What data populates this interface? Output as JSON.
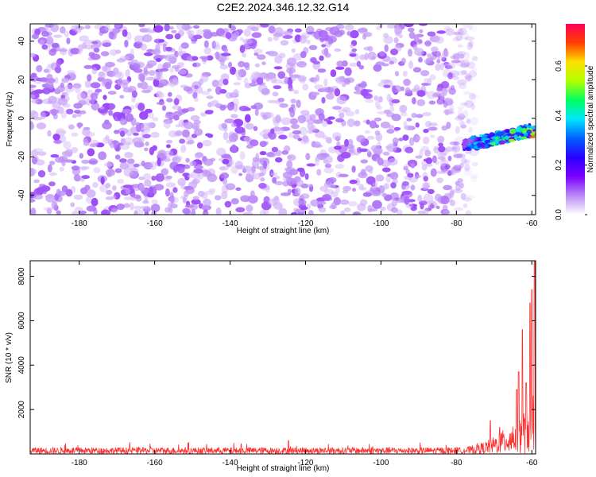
{
  "title": "C2E2.2024.346.12.32.G14",
  "chart_data": [
    {
      "type": "heatmap",
      "xlabel": "Height of straight line (km)",
      "ylabel": "Frequency (Hz)",
      "xlim": [
        -193,
        -59
      ],
      "ylim": [
        -50,
        49
      ],
      "x_ticks": [
        -180,
        -160,
        -140,
        -120,
        -100,
        -80,
        -60
      ],
      "y_ticks": [
        -40,
        -20,
        0,
        20,
        40
      ],
      "colorbar": {
        "label": "Normalized spectral amplitude",
        "range": [
          0,
          0.77
        ],
        "ticks": [
          0,
          0.2,
          0.4,
          0.6
        ],
        "tick_labels": [
          "0.0",
          "0.2",
          "0.4",
          "0.6"
        ],
        "colors": [
          "#ffffff",
          "#b98af5",
          "#7a00ff",
          "#2a00ff",
          "#0060ff",
          "#00e6ff",
          "#00ff60",
          "#b0ff00",
          "#ffe000",
          "#ff4000",
          "#ff005a"
        ]
      },
      "noise_region": {
        "x": [
          -193,
          -78
        ],
        "amplitude": [
          0.0,
          0.25
        ]
      },
      "signal_region": {
        "x": [
          -78,
          -59
        ],
        "frequency_center_at_start": -14,
        "frequency_center_at_end": -6,
        "frequency_width": 6,
        "peak_amplitude": 0.7
      }
    },
    {
      "type": "line",
      "xlabel": "Height of straight line (km)",
      "ylabel": "SNR (10 * v/v)",
      "xlim": [
        -193,
        -59
      ],
      "ylim": [
        0,
        8700
      ],
      "x_ticks": [
        -180,
        -160,
        -140,
        -120,
        -100,
        -80,
        -60
      ],
      "y_ticks": [
        2000,
        4000,
        6000,
        8000
      ],
      "line_color": "#ff3030",
      "baseline_level": [
        0,
        300
      ],
      "features": [
        {
          "x": -124.5,
          "value": 600
        },
        {
          "x": -71,
          "value": 1500
        },
        {
          "x": -68.5,
          "value": 1200
        },
        {
          "x": -64,
          "value": 2900
        },
        {
          "x": -63.5,
          "value": 3700
        },
        {
          "x": -62.5,
          "value": 5600
        },
        {
          "x": -61.5,
          "value": 3200
        },
        {
          "x": -60.5,
          "value": 6800
        },
        {
          "x": -60,
          "value": 7400
        },
        {
          "x": -59.3,
          "value": 8700
        }
      ]
    }
  ]
}
